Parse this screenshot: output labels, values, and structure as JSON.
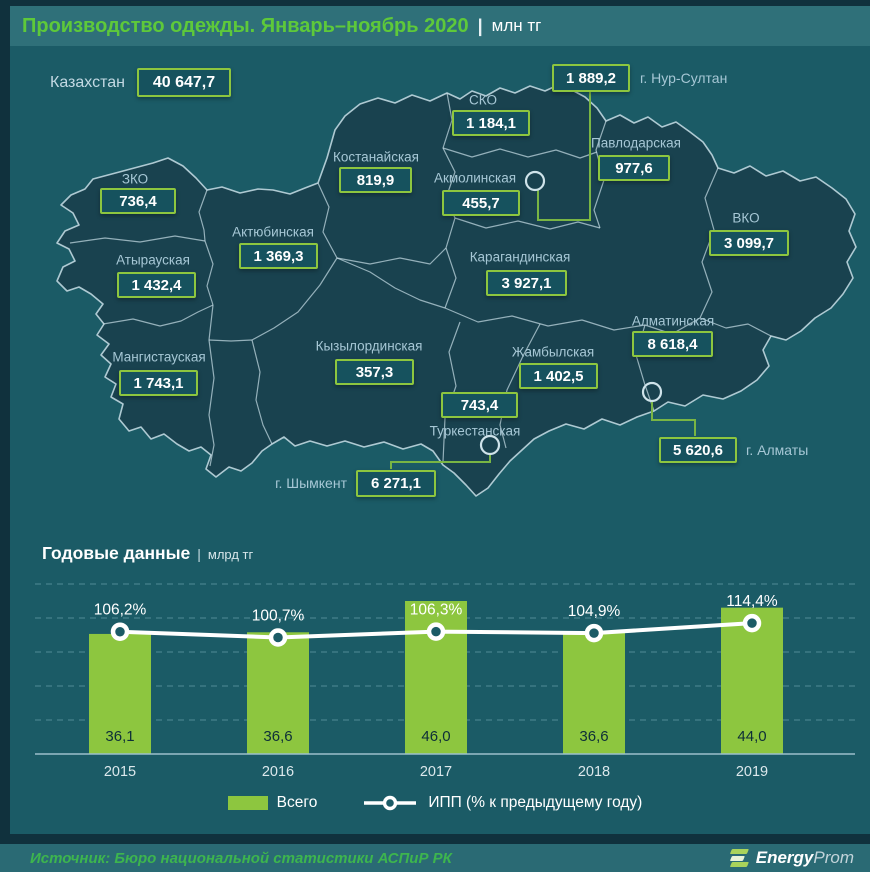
{
  "header": {
    "title": "Производство одежды. Январь–ноябрь 2020",
    "separator": "|",
    "unit": "млн тг"
  },
  "map": {
    "country_label": "Казахстан",
    "country_value": "40 647,7",
    "regions": [
      {
        "id": "sko",
        "label": "СКО",
        "value": "1 184,1"
      },
      {
        "id": "kostanay",
        "label": "Костанайская",
        "value": "819,9"
      },
      {
        "id": "akmola",
        "label": "Акмолинская",
        "value": "455,7"
      },
      {
        "id": "pavlodar",
        "label": "Павлодарская",
        "value": "977,6"
      },
      {
        "id": "zko",
        "label": "ЗКО",
        "value": "736,4"
      },
      {
        "id": "aktobe",
        "label": "Актюбинская",
        "value": "1 369,3"
      },
      {
        "id": "vko",
        "label": "ВКО",
        "value": "3 099,7"
      },
      {
        "id": "atyrau",
        "label": "Атырауская",
        "value": "1 432,4"
      },
      {
        "id": "karaganda",
        "label": "Карагандинская",
        "value": "3 927,1"
      },
      {
        "id": "almaty-region",
        "label": "Алматинская",
        "value": "8 618,4"
      },
      {
        "id": "mangystau",
        "label": "Мангистауская",
        "value": "1 743,1"
      },
      {
        "id": "kyzylorda",
        "label": "Кызылординская",
        "value": "357,3"
      },
      {
        "id": "zhambyl",
        "label": "Жамбылская",
        "value": "1 402,5"
      },
      {
        "id": "turkestan",
        "label": "Туркестанская",
        "value": "743,4"
      }
    ],
    "cities": [
      {
        "id": "nur-sultan",
        "label": "г. Нур-Султан",
        "value": "1 889,2"
      },
      {
        "id": "almaty-city",
        "label": "г. Алматы",
        "value": "5 620,6"
      },
      {
        "id": "shymkent",
        "label": "г. Шымкент",
        "value": "6 271,1"
      }
    ]
  },
  "chart": {
    "title": "Годовые данные",
    "separator": "|",
    "unit": "млрд тг"
  },
  "chart_data": {
    "type": "bar+line",
    "title": "Годовые данные (млрд тг)",
    "categories": [
      "2015",
      "2016",
      "2017",
      "2018",
      "2019"
    ],
    "series": [
      {
        "name": "Всего",
        "type": "bar",
        "values": [
          36.1,
          36.6,
          46.0,
          36.6,
          44.0
        ],
        "labels": [
          "36,1",
          "36,6",
          "46,0",
          "36,6",
          "44,0"
        ],
        "color": "#8dc63f"
      },
      {
        "name": "ИПП (% к предыдущему году)",
        "type": "line",
        "values": [
          106.2,
          100.7,
          106.3,
          104.9,
          114.4
        ],
        "labels": [
          "106,2%",
          "100,7%",
          "106,3%",
          "104,9%",
          "114,4%"
        ],
        "color": "#ffffff"
      }
    ],
    "grid": true,
    "legend_position": "bottom"
  },
  "legend": {
    "bar_label": "Всего",
    "line_label": "ИПП (% к предыдущему году)"
  },
  "footer": {
    "source": "Источник: Бюро национальной  статистики АСПиР РК",
    "brand_bold": "Energy",
    "brand_light": "Prom"
  },
  "colors": {
    "accent_green": "#8dc63f",
    "title_green": "#5ec93a",
    "background": "#1b5b66",
    "panel_dark": "#10313d",
    "map_fill": "#19424f",
    "map_border": "#c9dfe8",
    "line_white": "#ffffff",
    "source_green": "#3db54e"
  }
}
